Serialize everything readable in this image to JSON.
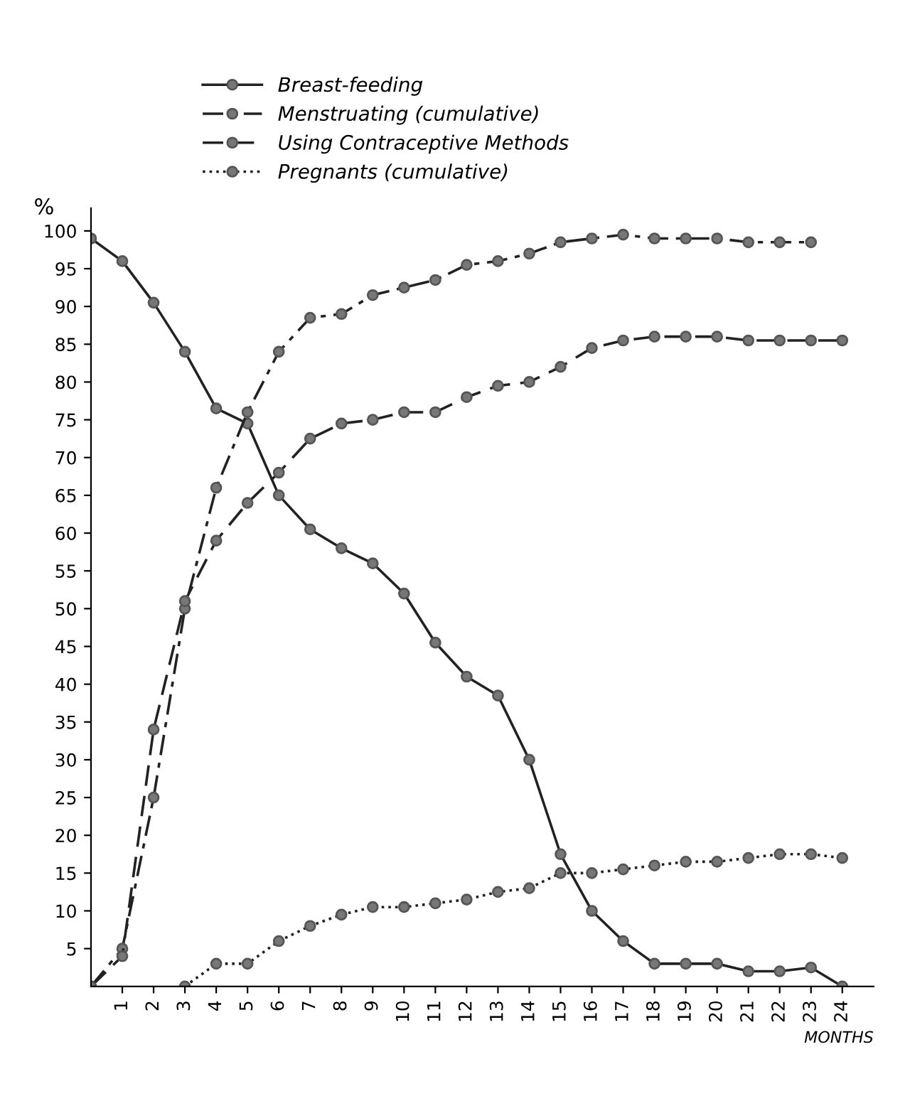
{
  "chart_data": {
    "type": "line",
    "ylabel": "%",
    "xlabel": "MONTHS",
    "xlim": [
      0,
      25
    ],
    "ylim": [
      0,
      103
    ],
    "xticks": [
      1,
      2,
      3,
      4,
      5,
      6,
      7,
      8,
      9,
      10,
      11,
      12,
      13,
      14,
      15,
      16,
      17,
      18,
      19,
      20,
      21,
      22,
      23,
      24
    ],
    "yticks": [
      5,
      10,
      15,
      20,
      25,
      30,
      35,
      40,
      45,
      50,
      55,
      60,
      65,
      70,
      75,
      80,
      85,
      90,
      95,
      100
    ],
    "grid": false,
    "legend": "top",
    "marker": "circle",
    "series": [
      {
        "name": "Breast-feeding",
        "color": "#222222",
        "line_style": "solid",
        "x": [
          0,
          1,
          2,
          3,
          4,
          5,
          6,
          7,
          8,
          9,
          10,
          11,
          12,
          13,
          14,
          15,
          16,
          17,
          18,
          19,
          20,
          21,
          22,
          23,
          24
        ],
        "values": [
          99,
          96,
          90.5,
          84,
          76.5,
          74.5,
          65,
          60.5,
          58,
          56,
          52,
          45.5,
          41,
          38.5,
          30,
          17.5,
          10,
          6,
          3,
          3,
          3,
          2,
          2,
          2.5,
          0
        ]
      },
      {
        "name": "Menstruating (cumulative)",
        "color": "#222222",
        "line_style": "dashdot",
        "x": [
          0,
          1,
          2,
          3,
          4,
          5,
          6,
          7,
          8,
          9,
          10,
          11,
          12,
          13,
          14,
          15,
          16,
          17,
          18,
          19,
          20,
          21,
          22,
          23
        ],
        "values": [
          0,
          5,
          25,
          50,
          66,
          76,
          84,
          88.5,
          89,
          91.5,
          92.5,
          93.5,
          95.5,
          96,
          97,
          98.5,
          99,
          99.5,
          99,
          99,
          99,
          98.5,
          98.5,
          98.5
        ]
      },
      {
        "name": "Using Contraceptive Methods",
        "color": "#222222",
        "line_style": "dashed",
        "x": [
          0,
          1,
          2,
          3,
          4,
          5,
          6,
          7,
          8,
          9,
          10,
          11,
          12,
          13,
          14,
          15,
          16,
          17,
          18,
          19,
          20,
          21,
          22,
          23,
          24
        ],
        "values": [
          0,
          4,
          34,
          51,
          59,
          64,
          68,
          72.5,
          74.5,
          75,
          76,
          76,
          78,
          79.5,
          80,
          82,
          84.5,
          85.5,
          86,
          86,
          86,
          85.5,
          85.5,
          85.5,
          85.5
        ]
      },
      {
        "name": "Pregnants (cumulative)",
        "color": "#222222",
        "line_style": "dotted",
        "x": [
          3,
          4,
          5,
          6,
          7,
          8,
          9,
          10,
          11,
          12,
          13,
          14,
          15,
          16,
          17,
          18,
          19,
          20,
          21,
          22,
          23,
          24
        ],
        "values": [
          0,
          3,
          3,
          6,
          8,
          9.5,
          10.5,
          10.5,
          11,
          11.5,
          12.5,
          13,
          15,
          15,
          15.5,
          16,
          16.5,
          16.5,
          17,
          17.5,
          17.5,
          17
        ]
      }
    ]
  }
}
